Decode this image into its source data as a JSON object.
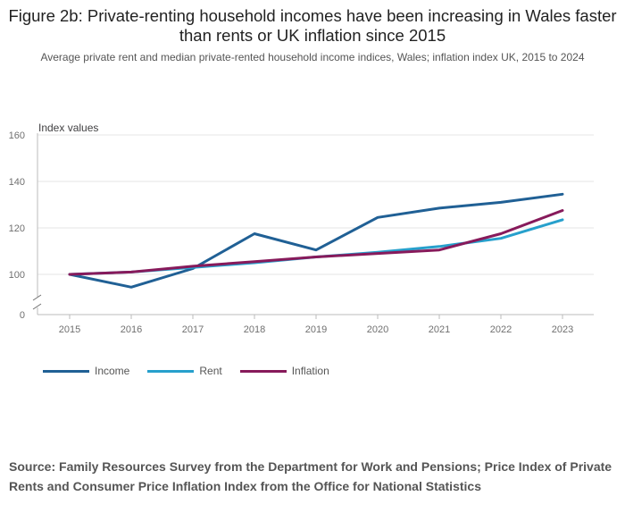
{
  "page": {
    "title": "Figure 2b: Private-renting household incomes have been increasing in Wales faster than rents or UK inflation since 2015",
    "subtitle": "Average private rent and median private-rented household income indices, Wales; inflation index UK, 2015 to 2024",
    "source": "Source: Family Resources Survey from the Department for Work and Pensions; Price Index of Private Rents and Consumer Price Inflation Index from the Office for National Statistics"
  },
  "colors": {
    "income": "#206095",
    "rent": "#27a0cc",
    "inflation": "#871a5b",
    "grid": "#e6e6e6",
    "axis": "#bbbbbb"
  },
  "chart_data": {
    "type": "line",
    "title": "Figure 2b: Private-renting household incomes have been increasing in Wales faster than rents or UK inflation since 2015",
    "subtitle": "Average private rent and median private-rented household income indices, Wales; inflation index UK, 2015 to 2024",
    "ylabel": "Index values",
    "xlabel": "",
    "x": [
      "2015",
      "2016",
      "2017",
      "2018",
      "2019",
      "2020",
      "2021",
      "2022",
      "2023"
    ],
    "y_ticks": [
      0,
      100,
      120,
      140,
      160
    ],
    "ylim": [
      0,
      160
    ],
    "axis_break": "between 0 and 100",
    "grid": true,
    "legend_position": "bottom-left",
    "series": [
      {
        "name": "Income",
        "color_key": "income",
        "values": [
          100,
          94.5,
          102.5,
          117.5,
          110.5,
          124.5,
          128.5,
          131,
          134.5
        ]
      },
      {
        "name": "Rent",
        "color_key": "rent",
        "values": [
          100,
          101,
          103,
          105,
          107.5,
          109.5,
          112,
          115.5,
          123.5
        ]
      },
      {
        "name": "Inflation",
        "color_key": "inflation",
        "values": [
          100,
          101,
          103.5,
          105.5,
          107.5,
          109,
          110.5,
          117.5,
          127.5
        ]
      }
    ]
  }
}
